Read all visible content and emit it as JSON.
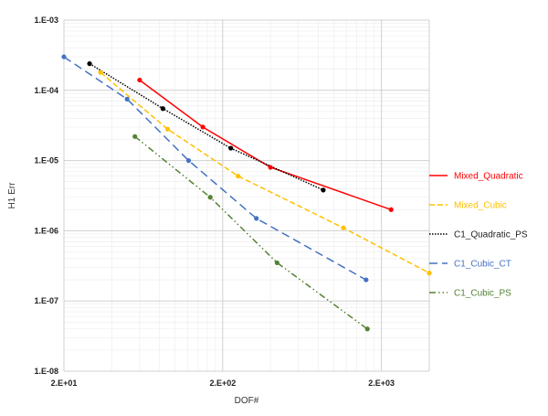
{
  "chart_data": {
    "type": "scatter",
    "xlabel": "DOF#",
    "ylabel": "H1 Err",
    "x_scale": "log",
    "y_scale": "log",
    "xlim": [
      20,
      4000
    ],
    "ylim": [
      1e-08,
      0.001
    ],
    "x_ticks": [
      {
        "value": 20,
        "label": "2.E+01"
      },
      {
        "value": 200,
        "label": "2.E+02"
      },
      {
        "value": 2000,
        "label": "2.E+03"
      }
    ],
    "y_ticks": [
      {
        "value": 0.001,
        "label": "1.E-03"
      },
      {
        "value": 0.0001,
        "label": "1.E-04"
      },
      {
        "value": 1e-05,
        "label": "1.E-05"
      },
      {
        "value": 1e-06,
        "label": "1.E-06"
      },
      {
        "value": 1e-07,
        "label": "1.E-07"
      },
      {
        "value": 1e-08,
        "label": "1.E-08"
      }
    ],
    "grid": true,
    "minor_grid": true,
    "legend_position": "right",
    "series": [
      {
        "name": "Mixed_Quadratic",
        "color": "#FF0000",
        "line_style": "solid",
        "points": [
          [
            60,
            0.00014
          ],
          [
            150,
            3e-05
          ],
          [
            400,
            8e-06
          ],
          [
            2300,
            2e-06
          ]
        ]
      },
      {
        "name": "Mixed_Cubic",
        "color": "#FFC000",
        "line_style": "dashed",
        "points": [
          [
            34,
            0.00018
          ],
          [
            90,
            2.8e-05
          ],
          [
            250,
            6e-06
          ],
          [
            1150,
            1.1e-06
          ],
          [
            4000,
            2.5e-07
          ]
        ]
      },
      {
        "name": "C1_Quadratic_PS",
        "color": "#000000",
        "line_style": "dotted",
        "points": [
          [
            29,
            0.00024
          ],
          [
            84,
            5.5e-05
          ],
          [
            225,
            1.5e-05
          ],
          [
            860,
            3.8e-06
          ]
        ]
      },
      {
        "name": "C1_Cubic_CT",
        "color": "#4472C4",
        "line_style": "long-dash",
        "points": [
          [
            20,
            0.0003
          ],
          [
            50,
            7.5e-05
          ],
          [
            122,
            1e-05
          ],
          [
            326,
            1.5e-06
          ],
          [
            1600,
            2e-07
          ]
        ]
      },
      {
        "name": "C1_Cubic_PS",
        "color": "#548235",
        "line_style": "dash-dot-dot",
        "points": [
          [
            56,
            2.2e-05
          ],
          [
            167,
            3e-06
          ],
          [
            440,
            3.5e-07
          ],
          [
            1630,
            4e-08
          ]
        ]
      }
    ]
  }
}
